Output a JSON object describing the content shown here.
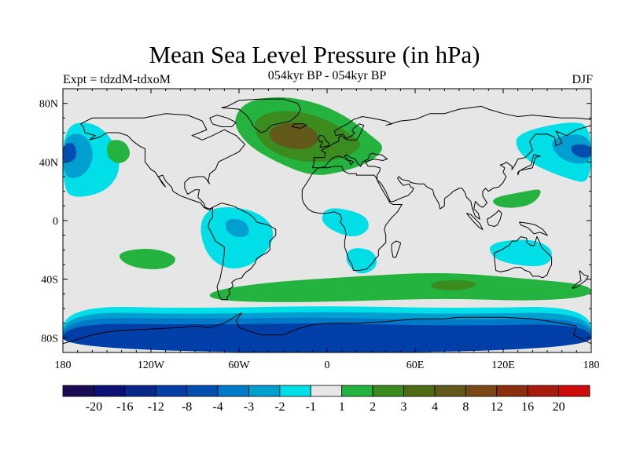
{
  "title": "Mean Sea Level Pressure (in hPa)",
  "subtitle": "054kyr BP - 054kyr BP",
  "left_label": "Expt = tdzdM-tdxoM",
  "right_label": "DJF",
  "map": {
    "projection": "cylindrical-equidistant",
    "lon_range": [
      -180,
      180
    ],
    "lat_range": [
      -90,
      90
    ],
    "lon_ticks": [
      {
        "value": -180,
        "label": "180"
      },
      {
        "value": -120,
        "label": "120W"
      },
      {
        "value": -60,
        "label": "60W"
      },
      {
        "value": 0,
        "label": "0"
      },
      {
        "value": 60,
        "label": "60E"
      },
      {
        "value": 120,
        "label": "120E"
      },
      {
        "value": 180,
        "label": "180"
      }
    ],
    "lat_ticks": [
      {
        "value": 80,
        "label": "80N"
      },
      {
        "value": 40,
        "label": "40N"
      },
      {
        "value": 0,
        "label": "0"
      },
      {
        "value": -40,
        "label": "40S"
      },
      {
        "value": -80,
        "label": "80S"
      }
    ],
    "background_color": "#e6e6e6",
    "regions": [
      {
        "name": "north-atlantic-positive",
        "color": "#23b33e",
        "points": [
          [
            -55,
            82
          ],
          [
            -30,
            85
          ],
          [
            -5,
            80
          ],
          [
            15,
            70
          ],
          [
            30,
            58
          ],
          [
            40,
            50
          ],
          [
            30,
            40
          ],
          [
            10,
            33
          ],
          [
            -10,
            30
          ],
          [
            -35,
            40
          ],
          [
            -55,
            52
          ],
          [
            -65,
            68
          ]
        ]
      },
      {
        "name": "north-atlantic-positive-mid",
        "color": "#3c8b1e",
        "points": [
          [
            -48,
            72
          ],
          [
            -25,
            76
          ],
          [
            -2,
            70
          ],
          [
            15,
            60
          ],
          [
            25,
            52
          ],
          [
            15,
            44
          ],
          [
            0,
            40
          ],
          [
            -20,
            40
          ],
          [
            -40,
            48
          ],
          [
            -50,
            60
          ]
        ]
      },
      {
        "name": "north-atlantic-positive-core",
        "color": "#61581a",
        "points": [
          [
            -38,
            64
          ],
          [
            -22,
            68
          ],
          [
            -8,
            62
          ],
          [
            -5,
            54
          ],
          [
            -15,
            48
          ],
          [
            -30,
            50
          ],
          [
            -40,
            56
          ]
        ]
      },
      {
        "name": "north-pacific-negative-outer",
        "color": "#00dfe8",
        "points": [
          [
            -180,
            65
          ],
          [
            -160,
            68
          ],
          [
            -145,
            55
          ],
          [
            -140,
            35
          ],
          [
            -150,
            20
          ],
          [
            -170,
            15
          ],
          [
            -180,
            20
          ]
        ]
      },
      {
        "name": "north-pacific-negative-mid",
        "color": "#009fd0",
        "points": [
          [
            -180,
            58
          ],
          [
            -165,
            60
          ],
          [
            -158,
            45
          ],
          [
            -165,
            30
          ],
          [
            -180,
            28
          ]
        ]
      },
      {
        "name": "north-pacific-negative-core",
        "color": "#004fb0",
        "points": [
          [
            -180,
            52
          ],
          [
            -172,
            54
          ],
          [
            -170,
            42
          ],
          [
            -180,
            38
          ]
        ]
      },
      {
        "name": "west-pacific-negative-outer",
        "color": "#00dfe8",
        "points": [
          [
            130,
            60
          ],
          [
            165,
            68
          ],
          [
            180,
            65
          ],
          [
            180,
            25
          ],
          [
            165,
            28
          ],
          [
            140,
            38
          ],
          [
            128,
            50
          ]
        ]
      },
      {
        "name": "west-pacific-negative-mid",
        "color": "#009fd0",
        "points": [
          [
            150,
            55
          ],
          [
            170,
            60
          ],
          [
            180,
            55
          ],
          [
            180,
            38
          ],
          [
            160,
            40
          ]
        ]
      },
      {
        "name": "west-pacific-negative-core",
        "color": "#004fb0",
        "points": [
          [
            165,
            52
          ],
          [
            180,
            52
          ],
          [
            180,
            42
          ],
          [
            168,
            44
          ]
        ]
      },
      {
        "name": "mid-pacific-positive",
        "color": "#23b33e",
        "points": [
          [
            -150,
            55
          ],
          [
            -138,
            55
          ],
          [
            -133,
            45
          ],
          [
            -140,
            38
          ],
          [
            -150,
            42
          ]
        ]
      },
      {
        "name": "south-america-negative",
        "color": "#00dfe8",
        "points": [
          [
            -80,
            10
          ],
          [
            -50,
            8
          ],
          [
            -35,
            -5
          ],
          [
            -40,
            -22
          ],
          [
            -60,
            -35
          ],
          [
            -80,
            -28
          ],
          [
            -88,
            -5
          ]
        ]
      },
      {
        "name": "south-america-negative-core",
        "color": "#009fd0",
        "points": [
          [
            -68,
            2
          ],
          [
            -55,
            0
          ],
          [
            -52,
            -10
          ],
          [
            -62,
            -12
          ],
          [
            -70,
            -6
          ]
        ]
      },
      {
        "name": "south-pacific-positive",
        "color": "#23b33e",
        "points": [
          [
            -145,
            -22
          ],
          [
            -120,
            -18
          ],
          [
            -100,
            -25
          ],
          [
            -110,
            -34
          ],
          [
            -135,
            -32
          ]
        ]
      },
      {
        "name": "africa-negative",
        "color": "#00dfe8",
        "points": [
          [
            0,
            10
          ],
          [
            25,
            5
          ],
          [
            30,
            -5
          ],
          [
            20,
            -12
          ],
          [
            5,
            -8
          ],
          [
            -5,
            0
          ]
        ]
      },
      {
        "name": "south-africa-negative",
        "color": "#00dfe8",
        "points": [
          [
            15,
            -18
          ],
          [
            32,
            -20
          ],
          [
            35,
            -32
          ],
          [
            22,
            -38
          ],
          [
            12,
            -28
          ]
        ]
      },
      {
        "name": "australia-negative",
        "color": "#00dfe8",
        "points": [
          [
            110,
            -15
          ],
          [
            140,
            -12
          ],
          [
            155,
            -20
          ],
          [
            150,
            -32
          ],
          [
            125,
            -30
          ],
          [
            112,
            -25
          ]
        ]
      },
      {
        "name": "east-asia-positive",
        "color": "#23b33e",
        "points": [
          [
            110,
            15
          ],
          [
            135,
            20
          ],
          [
            148,
            22
          ],
          [
            140,
            10
          ],
          [
            118,
            8
          ]
        ]
      },
      {
        "name": "southern-ocean-positive",
        "color": "#23b33e",
        "points": [
          [
            -80,
            -48
          ],
          [
            -40,
            -42
          ],
          [
            20,
            -38
          ],
          [
            80,
            -35
          ],
          [
            140,
            -40
          ],
          [
            180,
            -44
          ],
          [
            180,
            -52
          ],
          [
            140,
            -55
          ],
          [
            80,
            -53
          ],
          [
            20,
            -55
          ],
          [
            -40,
            -56
          ],
          [
            -80,
            -54
          ]
        ]
      },
      {
        "name": "southern-ocean-positive-core",
        "color": "#3c8b1e",
        "points": [
          [
            70,
            -42
          ],
          [
            90,
            -40
          ],
          [
            105,
            -43
          ],
          [
            92,
            -48
          ],
          [
            72,
            -47
          ]
        ]
      },
      {
        "name": "antarctic-negative-outer",
        "color": "#00dfe8",
        "points": [
          [
            -180,
            -58
          ],
          [
            -90,
            -60
          ],
          [
            0,
            -58
          ],
          [
            90,
            -60
          ],
          [
            180,
            -58
          ],
          [
            180,
            -90
          ],
          [
            -180,
            -90
          ]
        ]
      },
      {
        "name": "antarctic-negative-mid",
        "color": "#009fd0",
        "points": [
          [
            -180,
            -62
          ],
          [
            -90,
            -64
          ],
          [
            0,
            -62
          ],
          [
            90,
            -64
          ],
          [
            180,
            -62
          ],
          [
            180,
            -90
          ],
          [
            -180,
            -90
          ]
        ]
      },
      {
        "name": "antarctic-negative-strong",
        "color": "#0079c8",
        "points": [
          [
            -180,
            -66
          ],
          [
            -90,
            -67
          ],
          [
            0,
            -66
          ],
          [
            90,
            -68
          ],
          [
            180,
            -66
          ],
          [
            180,
            -90
          ],
          [
            -180,
            -90
          ]
        ]
      },
      {
        "name": "antarctic-negative-core",
        "color": "#003ea8",
        "points": [
          [
            -180,
            -70
          ],
          [
            -90,
            -71
          ],
          [
            0,
            -70
          ],
          [
            90,
            -72
          ],
          [
            180,
            -70
          ],
          [
            180,
            -90
          ],
          [
            -180,
            -90
          ]
        ]
      }
    ]
  },
  "colorbar": {
    "colors": [
      "#1a0b52",
      "#0b0f74",
      "#06268a",
      "#003ea8",
      "#004fb0",
      "#0079c8",
      "#009fd0",
      "#00dfe8",
      "#e6e6e6",
      "#23b33e",
      "#3c8b1e",
      "#4e6b14",
      "#61581a",
      "#7a4814",
      "#8b2e0c",
      "#a61b0c",
      "#cf0a0a"
    ],
    "labels": [
      "-20",
      "-16",
      "-12",
      "-8",
      "-4",
      "-3",
      "-2",
      "-1",
      "1",
      "2",
      "3",
      "4",
      "8",
      "12",
      "16",
      "20"
    ]
  }
}
